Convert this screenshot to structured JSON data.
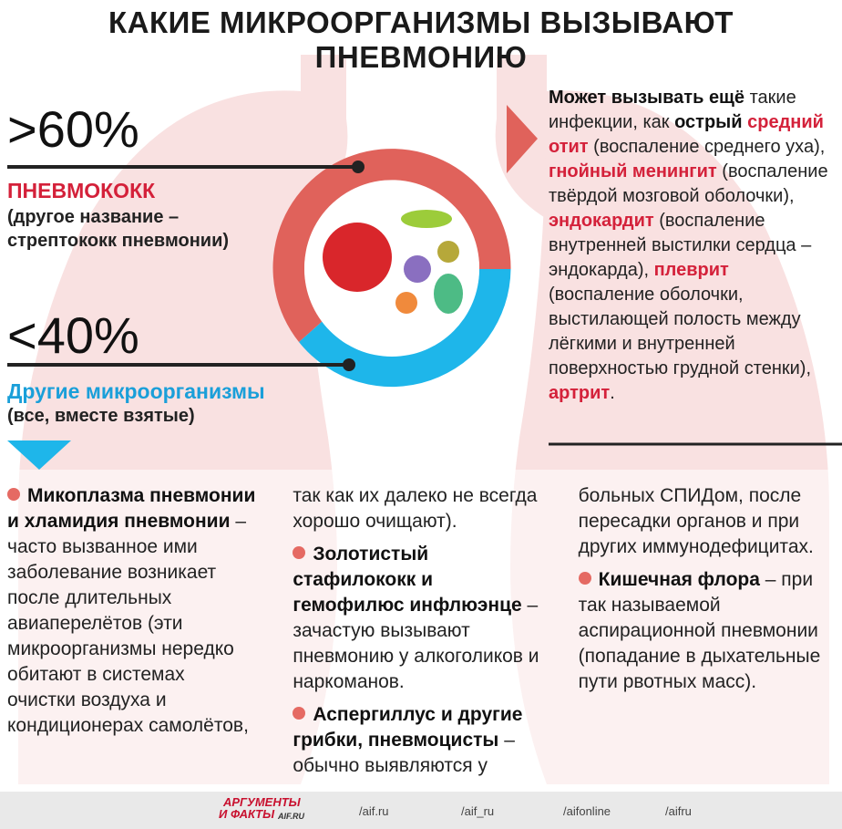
{
  "header": {
    "title": "КАКИЕ МИКРООРГАНИЗМЫ ВЫЗЫВАЮТ ПНЕВМОНИЮ"
  },
  "left": {
    "stat_1": ">60%",
    "name_1": "ПНЕВМОКОКК",
    "desc_1": "(другое название – стрептококк пневмонии)",
    "stat_2": "<40%",
    "name_2": "Другие микроорганизмы",
    "desc_2": "(все, вместе взятые)"
  },
  "right": {
    "segments": [
      {
        "text": "Может вызывать ещё",
        "style": "bold"
      },
      {
        "text": " такие инфекции, как ",
        "style": "normal"
      },
      {
        "text": "острый",
        "style": "bold"
      },
      {
        "text": " ",
        "style": "normal"
      },
      {
        "text": "средний отит",
        "style": "red"
      },
      {
        "text": " (воспаление среднего уха), ",
        "style": "normal"
      },
      {
        "text": "гнойный менингит",
        "style": "red"
      },
      {
        "text": " (воспаление твёрдой мозговой оболочки), ",
        "style": "normal"
      },
      {
        "text": "эндокардит",
        "style": "red"
      },
      {
        "text": " (воспаление внутренней выстилки сердца – эндокарда), ",
        "style": "normal"
      },
      {
        "text": "плеврит",
        "style": "red"
      },
      {
        "text": " (воспаление оболочки, выстилающей полость между лёгкими и внутренней поверхностью грудной стенки), ",
        "style": "normal"
      },
      {
        "text": "артрит",
        "style": "red"
      },
      {
        "text": ".",
        "style": "normal"
      }
    ]
  },
  "items": [
    {
      "title": "Микоплазма пневмонии и хламидия пневмонии",
      "text": " – часто вызванное ими заболевание возникает после длительных авиаперелётов (эти микроорганизмы нередко обитают в системах очистки воздуха и кондиционерах самолётов, так как их далеко не всегда хорошо очищают)."
    },
    {
      "title": "Золотистый стафилококк и гемофилюс инфлюэнце",
      "text": " – зачастую вызывают пневмонию у алкоголиков и наркоманов."
    },
    {
      "title": "Аспергиллус и другие грибки, пневмоцисты",
      "text": " – обычно выявляются у больных СПИДом, после пересадки органов и при других иммунодефицитах."
    },
    {
      "title": "Кишечная флора",
      "text": " – при так называемой аспирационной пневмонии (попадание в дыхательные пути рвотных масс)."
    }
  ],
  "footer": {
    "logo_top": "АРГУМЕНТЫ",
    "logo_bottom": "И ФАКТЫ",
    "logo_site": "AIF.RU",
    "links": [
      "/aif.ru",
      "/aif_ru",
      "/aifonline",
      "/aifru"
    ]
  }
}
